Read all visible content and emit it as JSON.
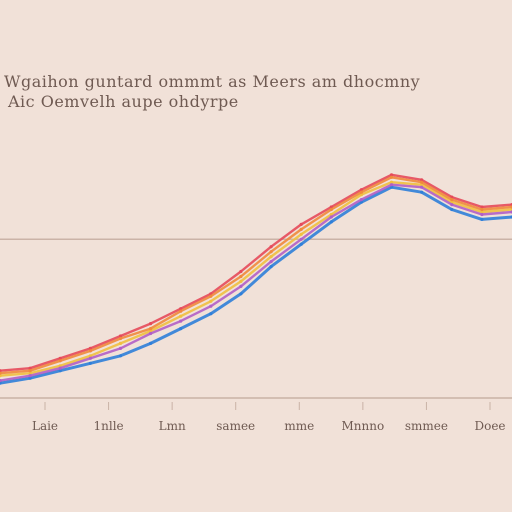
{
  "header": {
    "title_line_1": "Wgaihon guntard ommmt as Meers am dhocmny",
    "title_line_2": "Aic Oemvelh aupe ohdyrpe"
  },
  "colors": {
    "background": "#f1e1d8",
    "baseline": "#c9b2a6",
    "reference_line": "#cbb3a7",
    "text": "#6f5a52"
  },
  "chart_data": {
    "type": "line",
    "title": "Wgaihon guntard ommmt as Meers am dhocmny",
    "subtitle": "Aic Oemvelh aupe ohdyrpe",
    "xlabel": "",
    "ylabel": "",
    "categories": [
      "Laie",
      "1nlle",
      "Lmn",
      "samee",
      "mme",
      "Mnnno",
      "smmee",
      "Doee"
    ],
    "x": [
      0,
      1,
      2,
      3,
      4,
      5,
      6,
      7,
      8,
      9,
      10,
      11,
      12,
      13,
      14,
      15,
      16,
      17
    ],
    "xlim": [
      0,
      17
    ],
    "ylim": [
      0,
      100
    ],
    "reference_y": 64,
    "grid": false,
    "legend": "none",
    "series": [
      {
        "color": "#2f7fd9",
        "values": [
          6,
          8,
          11,
          14,
          17,
          22,
          28,
          34,
          42,
          53,
          62,
          71,
          79,
          85,
          83,
          76,
          72,
          73
        ]
      },
      {
        "color": "#e54a5a",
        "values": [
          11,
          12,
          16,
          20,
          25,
          30,
          36,
          42,
          51,
          61,
          70,
          77,
          84,
          90,
          88,
          81,
          77,
          78
        ]
      },
      {
        "color": "#f0c040",
        "values": [
          9,
          10,
          13,
          17,
          22,
          27,
          33,
          39,
          47,
          57,
          66,
          74,
          82,
          87,
          86,
          79,
          75,
          76
        ]
      },
      {
        "color": "#b15fc7",
        "values": [
          7,
          9,
          12,
          16,
          20,
          26,
          31,
          37,
          45,
          55,
          64,
          73,
          80,
          86,
          85,
          78,
          74,
          75
        ]
      },
      {
        "color": "#f08a3c",
        "values": [
          10,
          11,
          15,
          19,
          24,
          28,
          35,
          41,
          49,
          59,
          68,
          76,
          83,
          89,
          87,
          80,
          76,
          77
        ]
      }
    ]
  }
}
